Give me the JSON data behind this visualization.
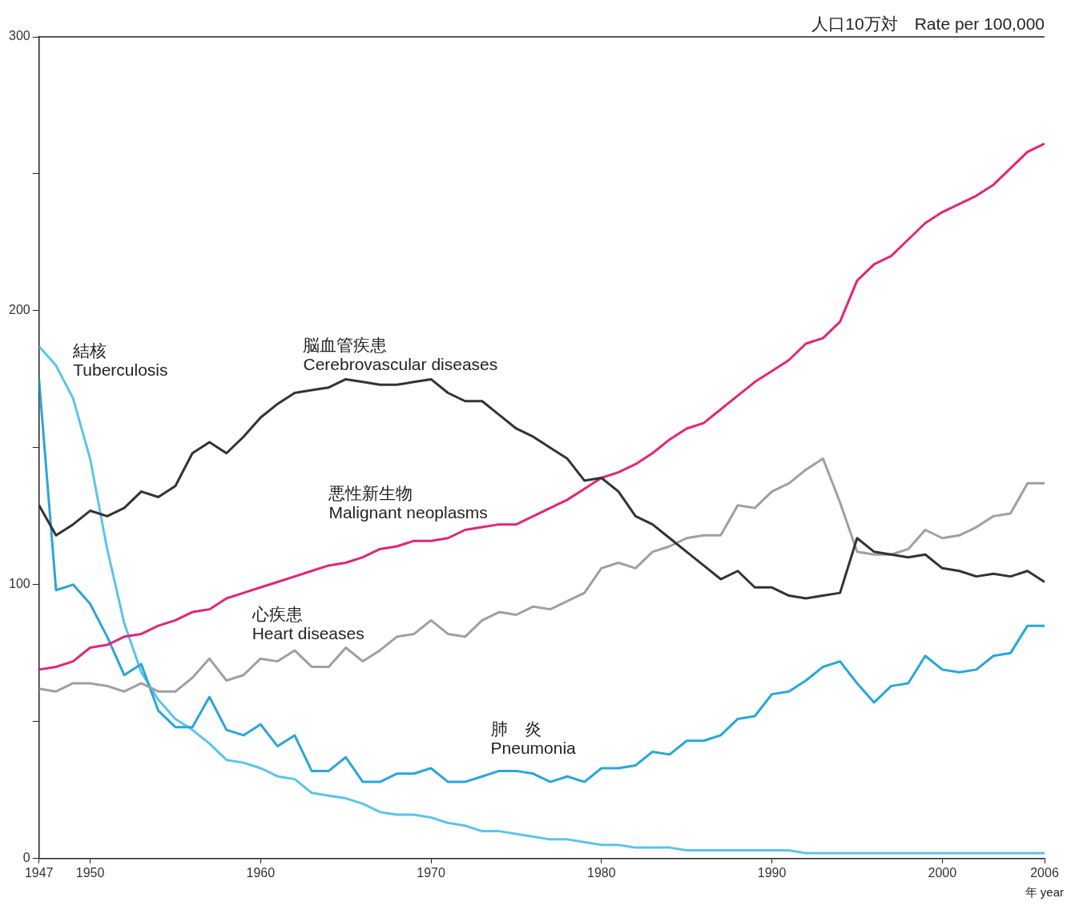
{
  "chart_data": {
    "type": "line",
    "ylabel": "人口10万対　Rate per 100,000",
    "xlabel": "年 year",
    "x": [
      1947,
      1948,
      1949,
      1950,
      1951,
      1952,
      1953,
      1954,
      1955,
      1956,
      1957,
      1958,
      1959,
      1960,
      1961,
      1962,
      1963,
      1964,
      1965,
      1966,
      1967,
      1968,
      1969,
      1970,
      1971,
      1972,
      1973,
      1974,
      1975,
      1976,
      1977,
      1978,
      1979,
      1980,
      1981,
      1982,
      1983,
      1984,
      1985,
      1986,
      1987,
      1988,
      1989,
      1990,
      1991,
      1992,
      1993,
      1994,
      1995,
      1996,
      1997,
      1998,
      1999,
      2000,
      2001,
      2002,
      2003,
      2004,
      2005,
      2006
    ],
    "xlim": [
      1947,
      2006
    ],
    "xticks": [
      1947,
      1950,
      1960,
      1970,
      1980,
      1990,
      2000,
      2006
    ],
    "ylim": [
      0,
      300
    ],
    "yticks": [
      0,
      {
        "value": 50,
        "label": null
      },
      100,
      {
        "value": 150,
        "label": null
      },
      200,
      {
        "value": 250,
        "label": null
      },
      300
    ],
    "grid": false,
    "legend": false,
    "marker": "none",
    "line_style": "solid",
    "series": [
      {
        "name": "脳血管疾患\nCerebrovascular diseases",
        "color": "#333333",
        "values": [
          129,
          118,
          122,
          127,
          125,
          128,
          134,
          132,
          136,
          148,
          152,
          148,
          154,
          161,
          166,
          170,
          171,
          172,
          175,
          174,
          173,
          173,
          174,
          175,
          170,
          167,
          167,
          162,
          157,
          154,
          150,
          146,
          138,
          139,
          134,
          125,
          122,
          117,
          112,
          107,
          102,
          105,
          99,
          99,
          96,
          95,
          96,
          97,
          117,
          112,
          111,
          110,
          111,
          106,
          105,
          103,
          104,
          103,
          105,
          101
        ]
      },
      {
        "name": "悪性新生物\nMalignant neoplasms",
        "color": "#e0267a",
        "values": [
          69,
          70,
          72,
          77,
          78,
          81,
          82,
          85,
          87,
          90,
          91,
          95,
          97,
          99,
          101,
          103,
          105,
          107,
          108,
          110,
          113,
          114,
          116,
          116,
          117,
          120,
          121,
          122,
          122,
          125,
          128,
          131,
          135,
          139,
          141,
          144,
          148,
          153,
          157,
          159,
          164,
          169,
          174,
          178,
          182,
          188,
          190,
          196,
          211,
          217,
          220,
          226,
          232,
          236,
          239,
          242,
          246,
          252,
          258,
          261
        ]
      },
      {
        "name": "心疾患\nHeart diseases",
        "color": "#a0a0a0",
        "values": [
          62,
          61,
          64,
          64,
          63,
          61,
          64,
          61,
          61,
          66,
          73,
          65,
          67,
          73,
          72,
          76,
          70,
          70,
          77,
          72,
          76,
          81,
          82,
          87,
          82,
          81,
          87,
          90,
          89,
          92,
          91,
          94,
          97,
          106,
          108,
          106,
          112,
          114,
          117,
          118,
          118,
          129,
          128,
          134,
          137,
          142,
          146,
          130,
          112,
          111,
          111,
          113,
          120,
          117,
          118,
          121,
          125,
          126,
          137,
          137
        ]
      },
      {
        "name": "肺　炎\nPneumonia",
        "color": "#2aa6d8",
        "values": [
          175,
          98,
          100,
          93,
          81,
          67,
          71,
          54,
          48,
          48,
          59,
          47,
          45,
          49,
          41,
          45,
          32,
          32,
          37,
          28,
          28,
          31,
          31,
          33,
          28,
          28,
          30,
          32,
          32,
          31,
          28,
          30,
          28,
          33,
          33,
          34,
          39,
          38,
          43,
          43,
          45,
          51,
          52,
          60,
          61,
          65,
          70,
          72,
          64,
          57,
          63,
          64,
          74,
          69,
          68,
          69,
          74,
          75,
          85,
          85
        ]
      },
      {
        "name": "結核\nTuberculosis",
        "color": "#5cc4ea",
        "values": [
          187,
          180,
          168,
          146,
          113,
          86,
          68,
          58,
          51,
          47,
          42,
          36,
          35,
          33,
          30,
          29,
          24,
          23,
          22,
          20,
          17,
          16,
          16,
          15,
          13,
          12,
          10,
          10,
          9,
          8,
          7,
          7,
          6,
          5,
          5,
          4,
          4,
          4,
          3,
          3,
          3,
          3,
          3,
          3,
          3,
          2,
          2,
          2,
          2,
          2,
          2,
          2,
          2,
          2,
          2,
          2,
          2,
          2,
          2,
          2
        ]
      }
    ]
  }
}
